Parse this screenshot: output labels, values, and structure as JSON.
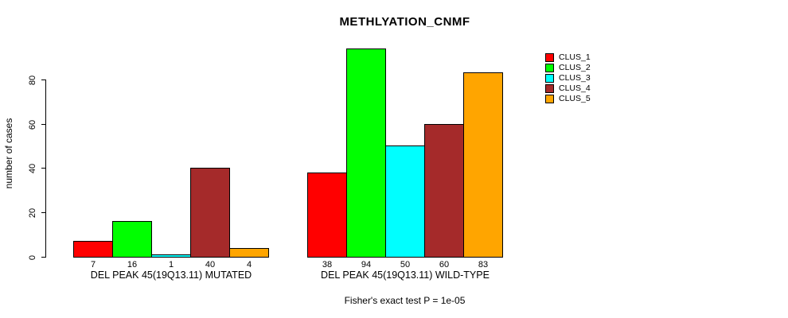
{
  "chart_data": {
    "type": "bar",
    "title": "METHLYATION_CNMF",
    "ylabel": "number of cases",
    "xlabel": "",
    "caption": "Fisher's exact test P = 1e-05",
    "categories": [
      "DEL PEAK 45(19Q13.11) MUTATED",
      "DEL PEAK 45(19Q13.11) WILD-TYPE"
    ],
    "series": [
      {
        "name": "CLUS_1",
        "color": "#ff0000",
        "values": [
          7,
          38
        ]
      },
      {
        "name": "CLUS_2",
        "color": "#00ff00",
        "values": [
          16,
          94
        ]
      },
      {
        "name": "CLUS_3",
        "color": "#00ffff",
        "values": [
          1,
          50
        ]
      },
      {
        "name": "CLUS_4",
        "color": "#a52a2a",
        "values": [
          40,
          60
        ]
      },
      {
        "name": "CLUS_5",
        "color": "#ffa500",
        "values": [
          4,
          83
        ]
      }
    ],
    "yticks": [
      0,
      20,
      40,
      60,
      80
    ],
    "ylim": [
      0,
      94
    ],
    "grid": false,
    "show_bar_value_labels": true,
    "legend": {
      "position": "top-right",
      "entries": [
        "CLUS_1",
        "CLUS_2",
        "CLUS_3",
        "CLUS_4",
        "CLUS_5"
      ]
    },
    "axis_color": "#000000",
    "background_color": "#ffffff"
  }
}
